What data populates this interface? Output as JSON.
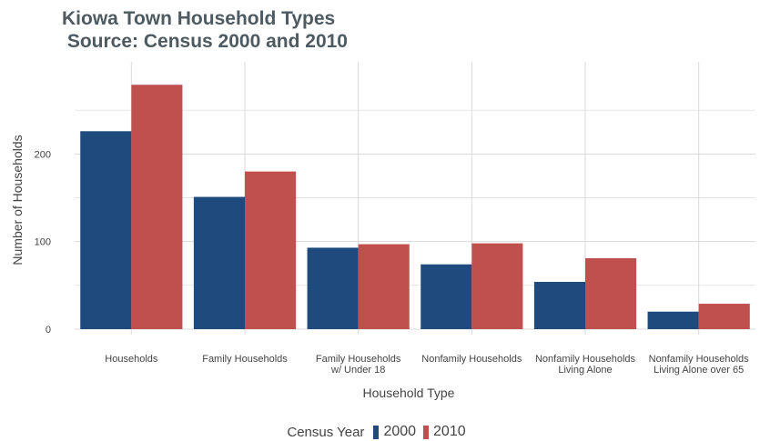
{
  "title_line1": "Kiowa Town Household Types",
  "title_line2": " Source: Census 2000 and 2010",
  "colors": {
    "2000": "#1f4a7d",
    "2010": "#c0504d",
    "grid": "#d9d9d9",
    "axis_text": "#444444"
  },
  "legend": {
    "title": "Census Year",
    "items": [
      "2000",
      "2010"
    ]
  },
  "chart_data": {
    "type": "bar",
    "title": "Kiowa Town Household Types\n Source: Census 2000 and 2010",
    "xlabel": "Household Type",
    "ylabel": "Number of Households",
    "categories": [
      [
        "Households"
      ],
      [
        "Family Households"
      ],
      [
        "Family Households",
        "w/ Under 18"
      ],
      [
        "Nonfamily Households"
      ],
      [
        "Nonfamily Households",
        "Living Alone"
      ],
      [
        "Nonfamily Households",
        "Living Alone over 65"
      ]
    ],
    "series": [
      {
        "name": "2000",
        "values": [
          226,
          151,
          93,
          74,
          54,
          20
        ]
      },
      {
        "name": "2010",
        "values": [
          279,
          180,
          97,
          98,
          81,
          29
        ]
      }
    ],
    "yticks": [
      0,
      100,
      200
    ],
    "ylim": [
      0,
      300
    ],
    "grid": true,
    "legend_position": "bottom"
  }
}
